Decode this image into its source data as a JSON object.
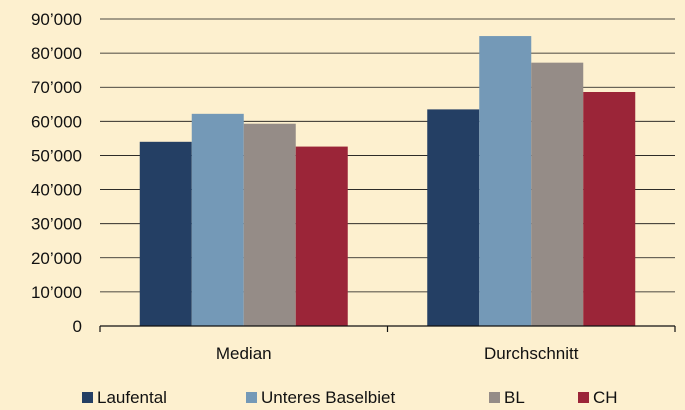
{
  "chart_data": {
    "type": "bar",
    "categories": [
      "Median",
      "Durchschnitt"
    ],
    "series": [
      {
        "name": "Laufental",
        "values": [
          54000,
          63500
        ],
        "color": "#243f64"
      },
      {
        "name": "Unteres Baselbiet",
        "values": [
          62200,
          85000
        ],
        "color": "#7499b7"
      },
      {
        "name": "BL",
        "values": [
          59300,
          77200
        ],
        "color": "#958c87"
      },
      {
        "name": "CH",
        "values": [
          52600,
          68600
        ],
        "color": "#9b2538"
      }
    ],
    "ylim": [
      0,
      90000
    ],
    "yticks": [
      0,
      10000,
      20000,
      30000,
      40000,
      50000,
      60000,
      70000,
      80000,
      90000
    ],
    "ytick_labels": [
      "0",
      "10’000",
      "20’000",
      "30’000",
      "40’000",
      "50’000",
      "60’000",
      "70’000",
      "80’000",
      "90’000"
    ],
    "grid": true,
    "legend_position": "bottom"
  }
}
